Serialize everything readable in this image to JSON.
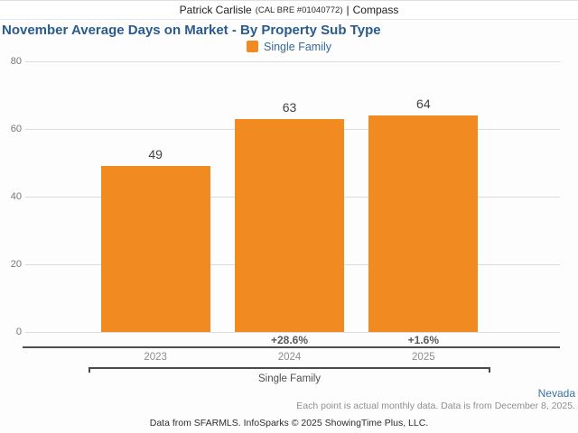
{
  "header": {
    "agent_name": "Patrick Carlisle",
    "license": "(CAL BRE #01040772)",
    "separator": "|",
    "brand": "Compass"
  },
  "chart": {
    "title": "November Average Days on Market - By Property Sub Type",
    "legend_label": "Single Family",
    "group_label": "Single Family"
  },
  "chart_data": {
    "type": "bar",
    "title": "November Average Days on Market - By Property Sub Type",
    "categories": [
      "2023",
      "2024",
      "2025"
    ],
    "series": [
      {
        "name": "Single Family",
        "values": [
          49,
          63,
          64
        ]
      }
    ],
    "value_labels": [
      "49",
      "63",
      "64"
    ],
    "yoy_change_labels": [
      "",
      "+28.6%",
      "+1.6%"
    ],
    "group_label": "Single Family",
    "ylim": [
      0,
      80
    ],
    "yticks": [
      0,
      20,
      40,
      60,
      80
    ],
    "grid": "horizontal",
    "legend_position": "top-center",
    "bar_color": "#F18B21",
    "colors": {
      "accent_orange": "#F18B21",
      "title_blue": "#2A5B8C",
      "legend_blue": "#35699B",
      "region_blue": "#3A72A5"
    }
  },
  "footer": {
    "region": "Nevada",
    "note": "Each point is actual monthly data. Data is from December 8, 2025.",
    "credit": "Data from SFARMLS. InfoSparks © 2025 ShowingTime Plus, LLC."
  }
}
